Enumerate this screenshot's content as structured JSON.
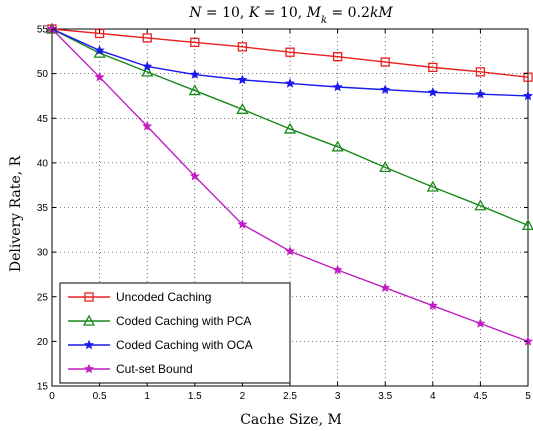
{
  "chart_data": {
    "type": "line",
    "title": "N = 10, K = 10, M_k = 0.2kM",
    "xlabel": "Cache Size, M",
    "ylabel": "Delivery Rate, R",
    "xlim": [
      0,
      5
    ],
    "ylim": [
      15,
      55
    ],
    "x_ticks": [
      0,
      0.5,
      1,
      1.5,
      2,
      2.5,
      3,
      3.5,
      4,
      4.5,
      5
    ],
    "y_ticks": [
      15,
      20,
      25,
      30,
      35,
      40,
      45,
      50,
      55
    ],
    "grid": true,
    "legend_position": "bottom-left",
    "x": [
      0,
      0.5,
      1,
      1.5,
      2,
      2.5,
      3,
      3.5,
      4,
      4.5,
      5
    ],
    "series": [
      {
        "name": "Uncoded Caching",
        "color": "#e8201e",
        "marker": "square",
        "values": [
          55,
          54.5,
          54,
          53.5,
          53,
          52.4,
          51.9,
          51.3,
          50.7,
          50.2,
          49.6
        ]
      },
      {
        "name": "Coded Caching with PCA",
        "color": "#1a8a1a",
        "marker": "triangle",
        "values": [
          55,
          52.3,
          50.2,
          48.1,
          46,
          43.8,
          41.8,
          39.5,
          37.3,
          35.2,
          33
        ]
      },
      {
        "name": "Coded Caching with OCA",
        "color": "#1a1aee",
        "marker": "star",
        "values": [
          55,
          52.6,
          50.8,
          49.9,
          49.3,
          48.9,
          48.5,
          48.2,
          47.9,
          47.7,
          47.5
        ]
      },
      {
        "name": "Cut-set Bound",
        "color": "#c21ec2",
        "marker": "star",
        "values": [
          55,
          49.6,
          44.1,
          38.5,
          33.1,
          30.1,
          28,
          26,
          24,
          22,
          20
        ]
      }
    ]
  }
}
